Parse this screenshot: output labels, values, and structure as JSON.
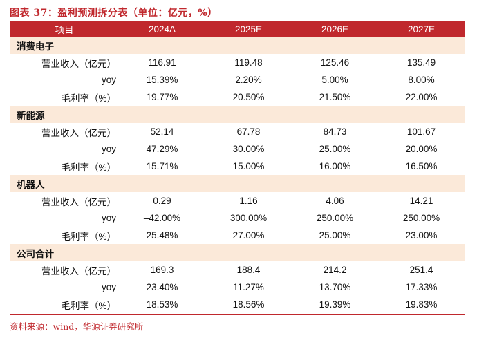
{
  "title": "图表 37：盈利预测拆分表（单位：亿元，%）",
  "header": {
    "col0": "项目",
    "col1": "2024A",
    "col2": "2025E",
    "col3": "2026E",
    "col4": "2027E"
  },
  "sections": [
    {
      "name": "消费电子",
      "rows": [
        {
          "label": "营业收入（亿元）",
          "values": [
            "116.91",
            "119.48",
            "125.46",
            "135.49"
          ]
        },
        {
          "label": "yoy",
          "values": [
            "15.39%",
            "2.20%",
            "5.00%",
            "8.00%"
          ]
        },
        {
          "label": "毛利率（%）",
          "values": [
            "19.77%",
            "20.50%",
            "21.50%",
            "22.00%"
          ]
        }
      ]
    },
    {
      "name": "新能源",
      "rows": [
        {
          "label": "营业收入（亿元）",
          "values": [
            "52.14",
            "67.78",
            "84.73",
            "101.67"
          ]
        },
        {
          "label": "yoy",
          "values": [
            "47.29%",
            "30.00%",
            "25.00%",
            "20.00%"
          ]
        },
        {
          "label": "毛利率（%）",
          "values": [
            "15.71%",
            "15.00%",
            "16.00%",
            "16.50%"
          ]
        }
      ]
    },
    {
      "name": "机器人",
      "rows": [
        {
          "label": "营业收入（亿元）",
          "values": [
            "0.29",
            "1.16",
            "4.06",
            "14.21"
          ]
        },
        {
          "label": "yoy",
          "values": [
            "–42.00%",
            "300.00%",
            "250.00%",
            "250.00%"
          ]
        },
        {
          "label": "毛利率（%）",
          "values": [
            "25.48%",
            "27.00%",
            "25.00%",
            "23.00%"
          ]
        }
      ]
    },
    {
      "name": "公司合计",
      "rows": [
        {
          "label": "营业收入（亿元）",
          "values": [
            "169.3",
            "188.4",
            "214.2",
            "251.4"
          ]
        },
        {
          "label": "yoy",
          "values": [
            "23.40%",
            "11.27%",
            "13.70%",
            "17.33%"
          ]
        },
        {
          "label": "毛利率（%）",
          "values": [
            "18.53%",
            "18.56%",
            "19.39%",
            "19.83%"
          ]
        }
      ]
    }
  ],
  "source": "资料来源：wind，华源证券研究所"
}
